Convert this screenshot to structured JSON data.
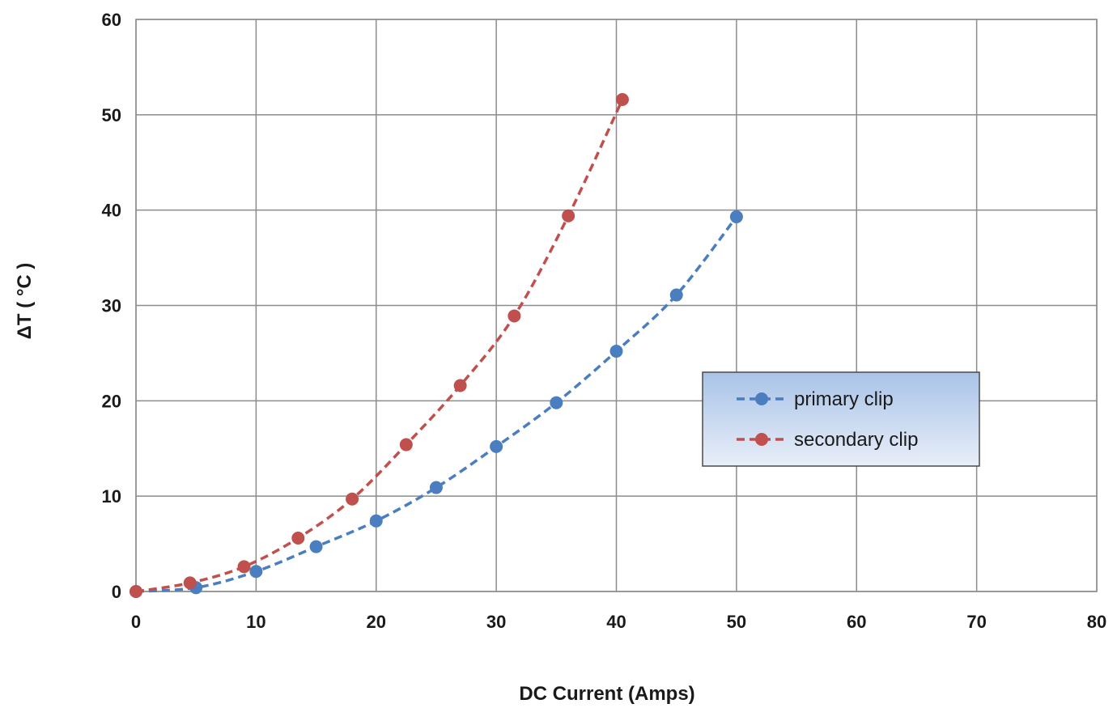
{
  "chart_data": {
    "type": "line",
    "title": "",
    "xlabel": "DC Current (Amps)",
    "ylabel": "ΔT ( °C )",
    "xlim": [
      0,
      80
    ],
    "ylim": [
      0,
      60
    ],
    "xticks": [
      0,
      10,
      20,
      30,
      40,
      50,
      60,
      70,
      80
    ],
    "yticks": [
      0,
      10,
      20,
      30,
      40,
      50,
      60
    ],
    "grid": true,
    "legend_position": "center-right",
    "line_style": "dashed",
    "marker": "circle",
    "series": [
      {
        "name": "primary clip",
        "color": "#4a7ebf",
        "x": [
          0,
          5,
          10,
          15,
          20,
          25,
          30,
          35,
          40,
          45,
          50
        ],
        "y": [
          0,
          0.4,
          2.1,
          4.7,
          7.4,
          10.9,
          15.2,
          19.8,
          25.2,
          31.1,
          39.3
        ]
      },
      {
        "name": "secondary clip",
        "color": "#c0504d",
        "x": [
          0,
          4.5,
          9,
          13.5,
          18,
          22.5,
          27,
          31.5,
          36,
          40.5
        ],
        "y": [
          0,
          0.9,
          2.6,
          5.6,
          9.7,
          15.4,
          21.6,
          28.9,
          39.4,
          51.6
        ]
      }
    ]
  }
}
